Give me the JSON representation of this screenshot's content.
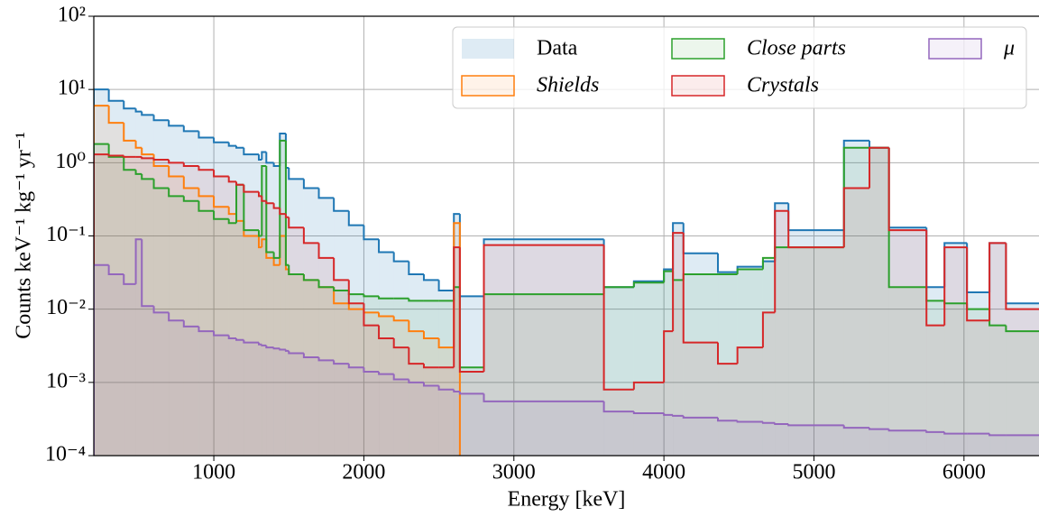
{
  "chart_data": {
    "type": "histogram",
    "xlabel": "Energy [keV]",
    "ylabel": "Counts keV⁻¹ kg⁻¹ yr⁻¹",
    "xlim": [
      200,
      6500
    ],
    "ylim": [
      0.0001,
      100
    ],
    "yscale": "log",
    "grid": true,
    "legend": "upper right",
    "xticks": [
      1000,
      2000,
      3000,
      4000,
      5000,
      6000
    ],
    "yticks": [
      {
        "value": 0.0001,
        "label": "10⁻⁴"
      },
      {
        "value": 0.001,
        "label": "10⁻³"
      },
      {
        "value": 0.01,
        "label": "10⁻²"
      },
      {
        "value": 0.1,
        "label": "10⁻¹"
      },
      {
        "value": 1,
        "label": "10⁰"
      },
      {
        "value": 10,
        "label": "10¹"
      },
      {
        "value": 100,
        "label": "10²"
      }
    ],
    "bins": [
      200,
      300,
      400,
      480,
      520,
      600,
      700,
      800,
      900,
      1000,
      1100,
      1150,
      1200,
      1300,
      1320,
      1350,
      1400,
      1440,
      1480,
      1500,
      1600,
      1700,
      1800,
      1900,
      2000,
      2100,
      2200,
      2300,
      2400,
      2500,
      2600,
      2640,
      2800,
      3600,
      3800,
      4000,
      4060,
      4130,
      4360,
      4490,
      4660,
      4740,
      4830,
      5200,
      5370,
      5500,
      5750,
      5870,
      6020,
      6170,
      6280,
      6500
    ],
    "series": [
      {
        "name": "Data",
        "color": "#1f77b4",
        "values": [
          10,
          7,
          5.5,
          5,
          4.5,
          3.8,
          3.2,
          2.7,
          2.2,
          1.9,
          1.7,
          1.6,
          1.3,
          1.1,
          1.4,
          1.0,
          0.9,
          2.5,
          0.85,
          0.6,
          0.45,
          0.33,
          0.22,
          0.14,
          0.09,
          0.06,
          0.045,
          0.03,
          0.025,
          0.018,
          0.2,
          0.015,
          0.09,
          0.02,
          0.024,
          0.035,
          0.15,
          0.058,
          0.032,
          0.038,
          0.045,
          0.28,
          0.12,
          2.0,
          1.6,
          0.13,
          0.02,
          0.08,
          0.017,
          0.08,
          0.012
        ]
      },
      {
        "name": "Shields",
        "color": "#ff7f0e",
        "values": [
          6,
          3.5,
          2,
          1.6,
          1.3,
          0.9,
          0.65,
          0.45,
          0.35,
          0.25,
          0.2,
          0.16,
          0.1,
          0.07,
          0.09,
          0.05,
          0.04,
          0.1,
          0.035,
          0.03,
          0.025,
          0.02,
          0.012,
          0.01,
          0.009,
          0.008,
          0.007,
          0.005,
          0.004,
          0.003,
          0.15,
          null,
          null,
          null,
          null,
          null,
          null,
          null,
          null,
          null,
          null,
          null,
          null,
          null,
          null,
          null,
          null,
          null,
          null,
          null,
          null
        ]
      },
      {
        "name": "Close parts",
        "color": "#2ca02c",
        "values": [
          1.8,
          1.2,
          0.8,
          0.7,
          0.6,
          0.45,
          0.35,
          0.3,
          0.22,
          0.17,
          0.15,
          0.5,
          0.12,
          0.1,
          0.9,
          0.06,
          0.05,
          2.0,
          0.04,
          0.03,
          0.025,
          0.02,
          0.018,
          0.016,
          0.015,
          0.014,
          0.014,
          0.013,
          0.013,
          0.013,
          0.02,
          0.0016,
          0.016,
          0.02,
          0.023,
          0.033,
          0.025,
          0.03,
          0.03,
          0.035,
          0.05,
          0.07,
          0.07,
          1.6,
          1.6,
          0.02,
          0.013,
          0.012,
          0.01,
          0.006,
          0.005
        ]
      },
      {
        "name": "Crystals",
        "color": "#d62728",
        "values": [
          1.3,
          1.25,
          1.2,
          1.2,
          1.15,
          1.1,
          1.0,
          0.9,
          0.8,
          0.65,
          0.55,
          0.5,
          0.4,
          0.35,
          0.3,
          0.28,
          0.24,
          0.2,
          0.18,
          0.13,
          0.08,
          0.05,
          0.025,
          0.012,
          0.006,
          0.004,
          0.003,
          0.0018,
          0.0016,
          0.0016,
          0.07,
          0.0014,
          0.075,
          0.0008,
          0.001,
          0.005,
          0.11,
          0.0035,
          0.0018,
          0.003,
          0.009,
          0.22,
          0.07,
          0.45,
          1.6,
          0.12,
          0.006,
          0.07,
          0.007,
          0.08,
          0.01
        ]
      },
      {
        "name": "μ",
        "color": "#9467bd",
        "values": [
          0.04,
          0.03,
          0.022,
          0.09,
          0.011,
          0.009,
          0.007,
          0.0058,
          0.005,
          0.0044,
          0.004,
          0.0038,
          0.0035,
          0.0033,
          0.0032,
          0.003,
          0.0029,
          0.0028,
          0.0027,
          0.0025,
          0.0022,
          0.002,
          0.0018,
          0.0016,
          0.0014,
          0.0013,
          0.0011,
          0.001,
          0.0009,
          0.0008,
          0.00075,
          0.0007,
          0.00055,
          0.0004,
          0.00038,
          0.00036,
          0.00035,
          0.00033,
          0.0003,
          0.00029,
          0.00028,
          0.00027,
          0.00026,
          0.00024,
          0.00023,
          0.00022,
          0.00021,
          0.0002,
          0.0002,
          0.00019,
          0.00019
        ]
      }
    ]
  }
}
